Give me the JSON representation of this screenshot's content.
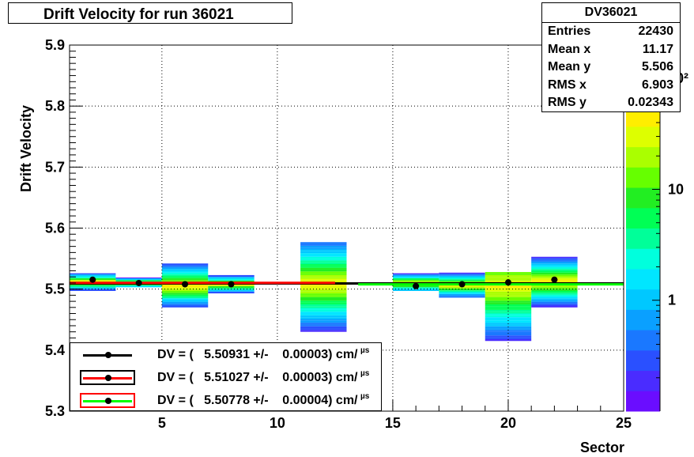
{
  "title": "Drift Velocity for run 36021",
  "stats": {
    "name": "DV36021",
    "rows": [
      {
        "key": "Entries",
        "value": "22430"
      },
      {
        "key": "Mean x",
        "value": "11.17"
      },
      {
        "key": "Mean y",
        "value": "5.506"
      },
      {
        "key": "RMS x",
        "value": "6.903"
      },
      {
        "key": "RMS y",
        "value": "0.02343"
      }
    ]
  },
  "legend": [
    {
      "text": "DV = (   5.50931 +/-    0.00003) cm/",
      "frame_color": "#ffffff",
      "line_color": "#000000"
    },
    {
      "text": "DV = (   5.51027 +/-    0.00003) cm/",
      "frame_color": "#000000",
      "line_color": "#ff0000"
    },
    {
      "text": "DV = (   5.50778 +/-    0.00004) cm/",
      "frame_color": "#ff0000",
      "line_color": "#00ff00"
    }
  ],
  "legend_unit_suffix": "µs",
  "chart_data": {
    "type": "heatmap",
    "title": "Drift Velocity for run 36021",
    "xlabel": "Sector",
    "ylabel": "Drift Velocity",
    "xlim": [
      1,
      25
    ],
    "ylim": [
      5.3,
      5.9
    ],
    "x_ticks": [
      5,
      10,
      15,
      20,
      25
    ],
    "y_ticks": [
      5.3,
      5.4,
      5.5,
      5.6,
      5.7,
      5.8,
      5.9
    ],
    "grid": true,
    "colorbar": {
      "scale": "log",
      "tick_labels": [
        "1",
        "10",
        "10²"
      ],
      "tick_values": [
        1,
        10,
        100
      ]
    },
    "bin_width": 2,
    "columns": [
      {
        "x0": 1,
        "y0": 5.497,
        "y1": 5.526,
        "peak": 5.512
      },
      {
        "x0": 3,
        "y0": 5.503,
        "y1": 5.519,
        "peak": 5.51
      },
      {
        "x0": 5,
        "y0": 5.47,
        "y1": 5.542,
        "peak": 5.505
      },
      {
        "x0": 7,
        "y0": 5.493,
        "y1": 5.523,
        "peak": 5.508
      },
      {
        "x0": 11,
        "y0": 5.43,
        "y1": 5.577,
        "peak": 5.508
      },
      {
        "x0": 15,
        "y0": 5.497,
        "y1": 5.526,
        "peak": 5.51
      },
      {
        "x0": 17,
        "y0": 5.486,
        "y1": 5.527,
        "peak": 5.506
      },
      {
        "x0": 19,
        "y0": 5.415,
        "y1": 5.528,
        "peak": 5.505
      },
      {
        "x0": 21,
        "y0": 5.47,
        "y1": 5.553,
        "peak": 5.512
      }
    ],
    "profile_points": [
      {
        "x": 2,
        "y": 5.5155
      },
      {
        "x": 4,
        "y": 5.51
      },
      {
        "x": 6,
        "y": 5.508
      },
      {
        "x": 8,
        "y": 5.508
      },
      {
        "x": 16,
        "y": 5.505
      },
      {
        "x": 18,
        "y": 5.508
      },
      {
        "x": 20,
        "y": 5.511
      },
      {
        "x": 22,
        "y": 5.5155
      }
    ],
    "fit_lines": [
      {
        "value": 5.50931,
        "x_range": [
          1,
          25
        ],
        "color": "#000000"
      },
      {
        "value": 5.51027,
        "x_range": [
          1,
          12.5
        ],
        "color": "#ff0000"
      },
      {
        "value": 5.50778,
        "x_range": [
          13.5,
          25
        ],
        "color": "#00ff00"
      }
    ]
  }
}
